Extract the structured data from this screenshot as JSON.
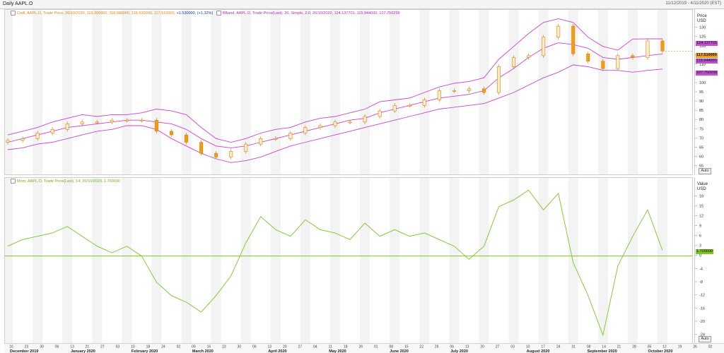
{
  "window": {
    "title": "Daily AAPL.O",
    "date_range": "11/12/2019 - 4/11/2020 (EST)"
  },
  "price_panel": {
    "legend_ohlc": "Cndl, AAPL.O, Trade Price, 20/10/2020, 116.300000, 118.980000, 115.630000, 117.510000,",
    "legend_change": "+1.530000, (+1.32%)",
    "legend_bband": "BBand, AAPL.O, Trade Price(Last), 20, Simple, 2.0, 20/10/2020, 124.137701, 115.944000, 107.750299",
    "axis_title_1": "Price",
    "axis_title_2": "USD",
    "last_price_tag": "117.510000",
    "upper_band_tag": "124.137701",
    "middle_band_tag": "115.944000",
    "lower_band_tag": "107.750299",
    "auto_label": "Auto"
  },
  "momentum_panel": {
    "legend": "Mom, AAPL.O, Trade Price(Last), 14, 20/10/2020, 1.700000",
    "axis_title_1": "Value",
    "axis_title_2": "USD",
    "last_value_tag": "1.700000",
    "auto_label": "Auto"
  },
  "colors": {
    "candle": "#f39c12",
    "band": "#cc44cc",
    "momentum": "#7cc522",
    "last_tag": "#f39c12",
    "band_tag": "#b030c0",
    "mom_tag": "#7cc522"
  },
  "chart_data": [
    {
      "type": "line",
      "title": "Daily AAPL.O",
      "subtype": "candlestick with Bollinger Bands",
      "ylabel": "Price USD",
      "ylim": [
        52.5,
        136
      ],
      "yticks": [
        55,
        60,
        65,
        70,
        75,
        80,
        85,
        90,
        95,
        100,
        105,
        110,
        115,
        120,
        125,
        130
      ],
      "grid": false,
      "legend_position": "top-left",
      "x": [
        "2019-12-16",
        "2019-12-23",
        "2019-12-30",
        "2020-01-06",
        "2020-01-13",
        "2020-01-20",
        "2020-01-27",
        "2020-02-03",
        "2020-02-10",
        "2020-02-17",
        "2020-02-24",
        "2020-03-02",
        "2020-03-09",
        "2020-03-16",
        "2020-03-23",
        "2020-03-30",
        "2020-04-06",
        "2020-04-13",
        "2020-04-20",
        "2020-04-27",
        "2020-05-04",
        "2020-05-11",
        "2020-05-18",
        "2020-05-25",
        "2020-06-01",
        "2020-06-08",
        "2020-06-15",
        "2020-06-22",
        "2020-06-29",
        "2020-07-06",
        "2020-07-13",
        "2020-07-20",
        "2020-07-27",
        "2020-08-03",
        "2020-08-10",
        "2020-08-17",
        "2020-08-24",
        "2020-08-31",
        "2020-09-07",
        "2020-09-14",
        "2020-09-21",
        "2020-09-28",
        "2020-10-05",
        "2020-10-12",
        "2020-10-20"
      ],
      "series": [
        {
          "name": "Cndl",
          "values": [
            69,
            70,
            73,
            75,
            78,
            79,
            79,
            80,
            80,
            80,
            74,
            72,
            68,
            62,
            60,
            63,
            67,
            70,
            70,
            73,
            76,
            77,
            79,
            79,
            82,
            85,
            88,
            88,
            91,
            96,
            96,
            97,
            95,
            109,
            114,
            115,
            125,
            131,
            116,
            112,
            108,
            115,
            114,
            123,
            117.51
          ]
        },
        {
          "name": "BBand upper",
          "values": [
            72,
            74,
            76,
            79,
            81,
            83,
            82,
            83,
            83,
            84,
            86,
            85,
            83,
            76,
            70,
            68,
            70,
            73,
            75,
            76,
            79,
            81,
            82,
            84,
            86,
            90,
            91,
            92,
            95,
            98,
            100,
            101,
            103,
            113,
            120,
            127,
            133,
            135,
            133,
            125,
            120,
            118,
            124,
            124.14,
            124.14
          ]
        },
        {
          "name": "BBand middle",
          "values": [
            68,
            70,
            72,
            74,
            76,
            77,
            78,
            79,
            80,
            80,
            79,
            78,
            75,
            70,
            66,
            65,
            66,
            68,
            70,
            72,
            74,
            76,
            78,
            80,
            81,
            84,
            86,
            88,
            90,
            92,
            93,
            94,
            96,
            103,
            108,
            114,
            119,
            122,
            121,
            119,
            114,
            113,
            114,
            115,
            115.94
          ]
        },
        {
          "name": "BBand lower",
          "values": [
            64,
            65,
            67,
            68,
            70,
            72,
            74,
            75,
            77,
            77,
            75,
            70,
            66,
            62,
            59,
            57,
            58,
            60,
            63,
            66,
            68,
            70,
            72,
            74,
            76,
            78,
            80,
            82,
            84,
            86,
            87,
            88,
            89,
            92,
            95,
            99,
            103,
            106,
            110,
            109,
            107,
            107,
            106,
            107,
            107.75
          ]
        }
      ]
    },
    {
      "type": "line",
      "ylabel": "Value USD",
      "ylim": [
        -26,
        22
      ],
      "yticks": [
        18,
        15,
        12,
        9,
        6,
        3,
        0,
        -4,
        -8,
        -12,
        -16,
        -20,
        -24
      ],
      "reference_line": 0,
      "grid": false,
      "x": [
        "2019-12-16",
        "2019-12-23",
        "2019-12-30",
        "2020-01-06",
        "2020-01-13",
        "2020-01-20",
        "2020-01-27",
        "2020-02-03",
        "2020-02-10",
        "2020-02-17",
        "2020-02-24",
        "2020-03-02",
        "2020-03-09",
        "2020-03-16",
        "2020-03-23",
        "2020-03-30",
        "2020-04-06",
        "2020-04-13",
        "2020-04-20",
        "2020-04-27",
        "2020-05-04",
        "2020-05-11",
        "2020-05-18",
        "2020-05-25",
        "2020-06-01",
        "2020-06-08",
        "2020-06-15",
        "2020-06-22",
        "2020-06-29",
        "2020-07-06",
        "2020-07-13",
        "2020-07-20",
        "2020-07-27",
        "2020-08-03",
        "2020-08-10",
        "2020-08-17",
        "2020-08-24",
        "2020-08-31",
        "2020-09-07",
        "2020-09-14",
        "2020-09-21",
        "2020-09-28",
        "2020-10-05",
        "2020-10-12",
        "2020-10-20"
      ],
      "series": [
        {
          "name": "Mom",
          "values": [
            3,
            5,
            6,
            7,
            9,
            6,
            3,
            1,
            3,
            0,
            -8,
            -12,
            -14,
            -17,
            -12,
            -6,
            4,
            12,
            8,
            6,
            11,
            8,
            7,
            5,
            10,
            6,
            8,
            6,
            7,
            5,
            3,
            -1,
            3,
            15,
            17,
            20,
            14,
            19,
            -2,
            -12,
            -24,
            -3,
            6,
            14,
            1.7
          ]
        }
      ]
    }
  ],
  "x_axis": {
    "day_ticks": [
      "16",
      "23",
      "30",
      "06",
      "13",
      "21",
      "27",
      "03",
      "10",
      "18",
      "24",
      "02",
      "09",
      "16",
      "23",
      "30",
      "06",
      "13",
      "20",
      "27",
      "04",
      "11",
      "18",
      "26",
      "01",
      "08",
      "15",
      "22",
      "29",
      "06",
      "13",
      "20",
      "27",
      "03",
      "10",
      "17",
      "24",
      "31",
      "08",
      "14",
      "21",
      "28",
      "05",
      "12",
      "19",
      "26",
      "02"
    ],
    "month_labels": [
      "December 2019",
      "January 2020",
      "February 2020",
      "March 2020",
      "April 2020",
      "May 2020",
      "June 2020",
      "July 2020",
      "August 2020",
      "September 2020",
      "October 2020"
    ]
  }
}
